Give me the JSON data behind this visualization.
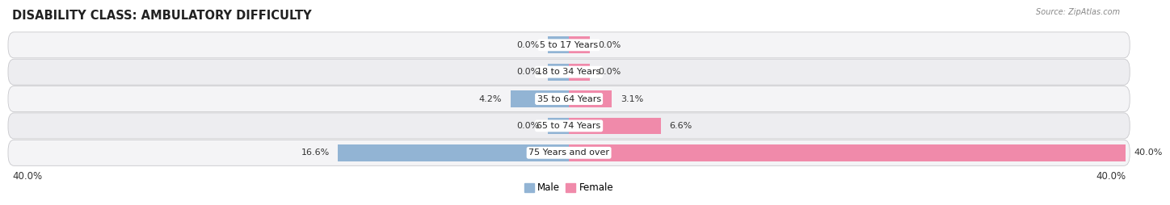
{
  "title": "DISABILITY CLASS: AMBULATORY DIFFICULTY",
  "source": "Source: ZipAtlas.com",
  "categories": [
    "5 to 17 Years",
    "18 to 34 Years",
    "35 to 64 Years",
    "65 to 74 Years",
    "75 Years and over"
  ],
  "male_values": [
    0.0,
    0.0,
    4.2,
    0.0,
    16.6
  ],
  "female_values": [
    0.0,
    0.0,
    3.1,
    6.6,
    40.0
  ],
  "x_max": 40.0,
  "male_color": "#92b4d4",
  "female_color": "#f08aaa",
  "label_fontsize": 8.0,
  "title_fontsize": 10.5,
  "axis_label_fontsize": 8.5,
  "legend_fontsize": 8.5,
  "bar_height": 0.62,
  "min_bar_display": 1.5,
  "x_axis_label_left": "40.0%",
  "x_axis_label_right": "40.0%"
}
